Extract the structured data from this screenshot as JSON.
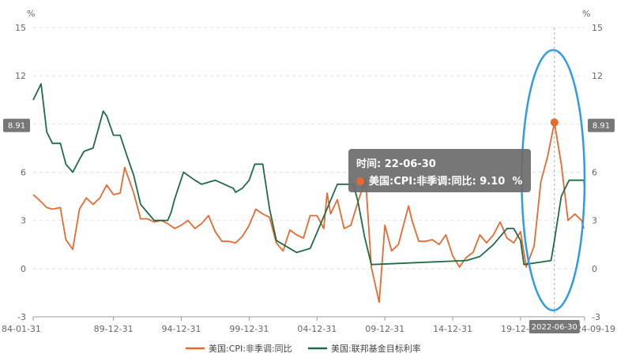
{
  "chart_data": {
    "type": "line",
    "y_unit_left": "%",
    "y_unit_right": "%",
    "ylim": [
      -3,
      15
    ],
    "y_ticks": [
      -3,
      0,
      3,
      6,
      9,
      12,
      15
    ],
    "x_range": [
      "1984-01-31",
      "2024-09-19"
    ],
    "x_tick_labels": [
      {
        "label": "84-01-31",
        "date": "1984-01-31"
      },
      {
        "label": "89-12-31",
        "date": "1989-12-31"
      },
      {
        "label": "94-12-31",
        "date": "1994-12-31"
      },
      {
        "label": "99-12-31",
        "date": "1999-12-31"
      },
      {
        "label": "04-12-31",
        "date": "2004-12-31"
      },
      {
        "label": "09-12-31",
        "date": "2009-12-31"
      },
      {
        "label": "14-12-31",
        "date": "2014-12-31"
      },
      {
        "label": "19-12-31",
        "date": "2019-12-31"
      },
      {
        "label": "24-09-19",
        "date": "2024-09-19"
      }
    ],
    "grid": true,
    "legend_position": "bottom",
    "series": [
      {
        "name": "美国:CPI:非季调:同比",
        "color": "#E8692F",
        "points": [
          [
            "1984-01-31",
            4.6
          ],
          [
            "1984-06-30",
            4.3
          ],
          [
            "1985-01-31",
            3.8
          ],
          [
            "1985-06-30",
            3.7
          ],
          [
            "1986-01-31",
            3.8
          ],
          [
            "1986-06-30",
            1.8
          ],
          [
            "1986-12-31",
            1.2
          ],
          [
            "1987-06-30",
            3.7
          ],
          [
            "1987-12-31",
            4.4
          ],
          [
            "1988-06-30",
            4.0
          ],
          [
            "1988-12-31",
            4.4
          ],
          [
            "1989-06-30",
            5.2
          ],
          [
            "1989-12-31",
            4.6
          ],
          [
            "1990-06-30",
            4.7
          ],
          [
            "1990-10-31",
            6.3
          ],
          [
            "1991-06-30",
            4.7
          ],
          [
            "1991-12-31",
            3.1
          ],
          [
            "1992-06-30",
            3.1
          ],
          [
            "1992-12-31",
            2.9
          ],
          [
            "1993-06-30",
            3.0
          ],
          [
            "1993-12-31",
            2.8
          ],
          [
            "1994-06-30",
            2.5
          ],
          [
            "1994-12-31",
            2.7
          ],
          [
            "1995-06-30",
            3.0
          ],
          [
            "1995-12-31",
            2.5
          ],
          [
            "1996-06-30",
            2.8
          ],
          [
            "1996-12-31",
            3.3
          ],
          [
            "1997-06-30",
            2.3
          ],
          [
            "1997-12-31",
            1.7
          ],
          [
            "1998-06-30",
            1.7
          ],
          [
            "1998-12-31",
            1.6
          ],
          [
            "1999-06-30",
            2.0
          ],
          [
            "1999-12-31",
            2.7
          ],
          [
            "2000-06-30",
            3.7
          ],
          [
            "2000-12-31",
            3.4
          ],
          [
            "2001-06-30",
            3.2
          ],
          [
            "2001-12-31",
            1.6
          ],
          [
            "2002-06-30",
            1.1
          ],
          [
            "2002-12-31",
            2.4
          ],
          [
            "2003-06-30",
            2.1
          ],
          [
            "2003-12-31",
            1.9
          ],
          [
            "2004-06-30",
            3.3
          ],
          [
            "2004-12-31",
            3.3
          ],
          [
            "2005-06-30",
            2.5
          ],
          [
            "2005-09-30",
            4.7
          ],
          [
            "2005-12-31",
            3.4
          ],
          [
            "2006-06-30",
            4.3
          ],
          [
            "2006-12-31",
            2.5
          ],
          [
            "2007-06-30",
            2.7
          ],
          [
            "2007-12-31",
            4.1
          ],
          [
            "2008-07-31",
            5.6
          ],
          [
            "2008-12-31",
            0.1
          ],
          [
            "2009-07-31",
            -2.1
          ],
          [
            "2009-12-31",
            2.7
          ],
          [
            "2010-06-30",
            1.1
          ],
          [
            "2010-12-31",
            1.5
          ],
          [
            "2011-09-30",
            3.9
          ],
          [
            "2011-12-31",
            3.0
          ],
          [
            "2012-06-30",
            1.7
          ],
          [
            "2012-12-31",
            1.7
          ],
          [
            "2013-06-30",
            1.8
          ],
          [
            "2013-12-31",
            1.5
          ],
          [
            "2014-06-30",
            2.1
          ],
          [
            "2014-12-31",
            0.8
          ],
          [
            "2015-06-30",
            0.1
          ],
          [
            "2015-12-31",
            0.7
          ],
          [
            "2016-06-30",
            1.0
          ],
          [
            "2016-12-31",
            2.1
          ],
          [
            "2017-06-30",
            1.6
          ],
          [
            "2017-12-31",
            2.1
          ],
          [
            "2018-06-30",
            2.9
          ],
          [
            "2018-12-31",
            1.9
          ],
          [
            "2019-06-30",
            1.6
          ],
          [
            "2019-12-31",
            2.3
          ],
          [
            "2020-05-31",
            0.1
          ],
          [
            "2020-12-31",
            1.4
          ],
          [
            "2021-06-30",
            5.4
          ],
          [
            "2021-12-31",
            7.0
          ],
          [
            "2022-06-30",
            9.1
          ],
          [
            "2022-12-31",
            6.5
          ],
          [
            "2023-06-30",
            3.0
          ],
          [
            "2023-12-31",
            3.4
          ],
          [
            "2024-06-30",
            3.0
          ],
          [
            "2024-08-31",
            2.5
          ]
        ]
      },
      {
        "name": "美国:联邦基金目标利率",
        "color": "#1F6B45",
        "points": [
          [
            "1984-01-31",
            10.5
          ],
          [
            "1984-08-31",
            11.5
          ],
          [
            "1985-01-31",
            8.5
          ],
          [
            "1985-06-30",
            7.8
          ],
          [
            "1986-01-31",
            7.8
          ],
          [
            "1986-06-30",
            6.5
          ],
          [
            "1986-12-31",
            6.0
          ],
          [
            "1987-06-30",
            6.8
          ],
          [
            "1987-10-31",
            7.3
          ],
          [
            "1988-06-30",
            7.5
          ],
          [
            "1989-03-31",
            9.8
          ],
          [
            "1989-06-30",
            9.5
          ],
          [
            "1989-12-31",
            8.3
          ],
          [
            "1990-06-30",
            8.3
          ],
          [
            "1990-12-31",
            7.0
          ],
          [
            "1991-06-30",
            5.8
          ],
          [
            "1991-12-31",
            4.0
          ],
          [
            "1992-06-30",
            3.5
          ],
          [
            "1992-12-31",
            3.0
          ],
          [
            "1993-12-31",
            3.0
          ],
          [
            "1994-03-31",
            3.5
          ],
          [
            "1994-06-30",
            4.3
          ],
          [
            "1995-02-28",
            6.0
          ],
          [
            "1995-12-31",
            5.5
          ],
          [
            "1996-06-30",
            5.25
          ],
          [
            "1997-06-30",
            5.5
          ],
          [
            "1998-10-31",
            5.0
          ],
          [
            "1998-12-31",
            4.75
          ],
          [
            "1999-06-30",
            5.0
          ],
          [
            "1999-12-31",
            5.5
          ],
          [
            "2000-05-31",
            6.5
          ],
          [
            "2000-12-31",
            6.5
          ],
          [
            "2001-06-30",
            3.75
          ],
          [
            "2001-12-31",
            1.75
          ],
          [
            "2002-12-31",
            1.25
          ],
          [
            "2003-06-30",
            1.0
          ],
          [
            "2004-06-30",
            1.25
          ],
          [
            "2004-12-31",
            2.25
          ],
          [
            "2005-12-31",
            4.25
          ],
          [
            "2006-06-30",
            5.25
          ],
          [
            "2007-08-31",
            5.25
          ],
          [
            "2007-12-31",
            4.25
          ],
          [
            "2008-06-30",
            2.0
          ],
          [
            "2008-12-31",
            0.25
          ],
          [
            "2015-12-31",
            0.5
          ],
          [
            "2016-12-31",
            0.75
          ],
          [
            "2017-12-31",
            1.5
          ],
          [
            "2018-12-31",
            2.5
          ],
          [
            "2019-06-30",
            2.5
          ],
          [
            "2019-12-31",
            1.75
          ],
          [
            "2020-03-31",
            0.25
          ],
          [
            "2022-03-31",
            0.5
          ],
          [
            "2022-06-30",
            1.75
          ],
          [
            "2022-12-31",
            4.5
          ],
          [
            "2023-07-31",
            5.5
          ],
          [
            "2024-08-31",
            5.5
          ],
          [
            "2024-09-19",
            5.0
          ]
        ]
      }
    ],
    "tooltip": {
      "time_label": "时间: 22-06-30",
      "series_value_label": "美国:CPI:非季调:同比: 9.10  %",
      "highlight": {
        "date": "2022-06-30",
        "value": 9.1
      }
    },
    "axis_pointer": {
      "x_label": "2022-06-30",
      "y_value_label": "8.91"
    },
    "annotation": {
      "type": "ellipse",
      "color": "#2F9BE6",
      "date_range": [
        "2020-01-31",
        "2024-09-19"
      ],
      "value_range": [
        -2.6,
        13.6
      ]
    }
  }
}
